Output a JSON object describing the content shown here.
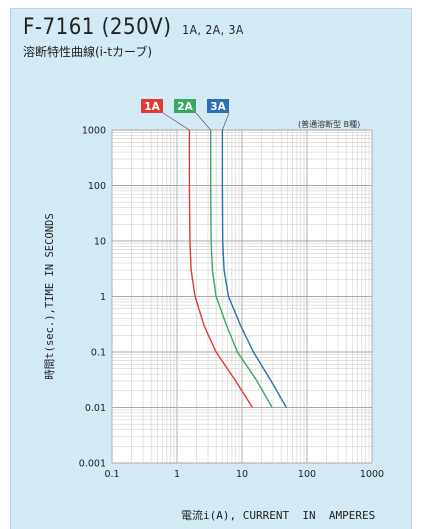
{
  "header": {
    "model": "F-7161 (250V)",
    "ratings": "1A, 2A, 3A",
    "subtitle": "溶断特性曲線(i-tカーブ)",
    "note": "(普通溶断型 B種)"
  },
  "colors": {
    "background": "#d3e9f3",
    "plot_area": "#ffffff",
    "grid": "#c8c8c8",
    "series": [
      "#e03b33",
      "#3aa865",
      "#2d6fb0"
    ]
  },
  "chart_data": {
    "type": "line",
    "xscale": "log",
    "yscale": "log",
    "xlim": [
      0.1,
      1000
    ],
    "ylim": [
      0.001,
      1000
    ],
    "grid": true,
    "xlabel": "電流i(A), CURRENT  IN  AMPERES",
    "ylabel": "時間t(sec.),TIME  IN  SECONDS",
    "x_ticks": [
      "0.1",
      "1",
      "10",
      "100",
      "1000"
    ],
    "y_ticks": [
      "0.001",
      "0.01",
      "0.1",
      "1",
      "10",
      "100",
      "1000"
    ],
    "legend_placement": "top",
    "series": [
      {
        "name": "1A",
        "color": "#e03b33",
        "points": [
          [
            1.55,
            1000
          ],
          [
            1.55,
            100
          ],
          [
            1.58,
            10
          ],
          [
            1.65,
            3
          ],
          [
            1.9,
            1
          ],
          [
            2.6,
            0.3
          ],
          [
            4.0,
            0.1
          ],
          [
            8.0,
            0.03
          ],
          [
            14.5,
            0.01
          ]
        ]
      },
      {
        "name": "2A",
        "color": "#3aa865",
        "points": [
          [
            3.3,
            1000
          ],
          [
            3.3,
            100
          ],
          [
            3.35,
            10
          ],
          [
            3.5,
            3
          ],
          [
            4.0,
            1
          ],
          [
            5.8,
            0.3
          ],
          [
            8.5,
            0.1
          ],
          [
            17,
            0.03
          ],
          [
            29,
            0.01
          ]
        ]
      },
      {
        "name": "3A",
        "color": "#2d6fb0",
        "points": [
          [
            5.0,
            1000
          ],
          [
            5.0,
            100
          ],
          [
            5.05,
            10
          ],
          [
            5.3,
            3
          ],
          [
            6.2,
            1
          ],
          [
            9.5,
            0.3
          ],
          [
            15,
            0.1
          ],
          [
            28,
            0.03
          ],
          [
            48,
            0.01
          ]
        ]
      }
    ]
  }
}
